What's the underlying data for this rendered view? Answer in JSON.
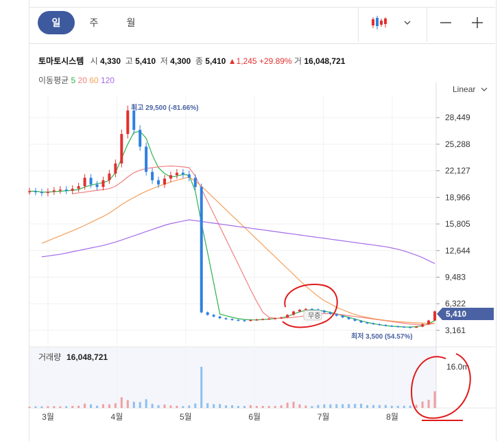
{
  "periods": [
    "일",
    "주",
    "월"
  ],
  "active_period": "일",
  "scale_label": "Linear",
  "stock": {
    "name": "토마토시스템",
    "open_label": "시",
    "open": "4,330",
    "high_label": "고",
    "high": "5,410",
    "low_label": "저",
    "low": "4,300",
    "close_label": "종",
    "close": "5,410",
    "change": "▲1,245",
    "change_pct": "+29.89%",
    "volume_label": "거",
    "volume": "16,048,721"
  },
  "moving_average": {
    "label": "이동평균",
    "periods": [
      {
        "value": "5",
        "color": "#2bb24c"
      },
      {
        "value": "20",
        "color": "#f08080"
      },
      {
        "value": "60",
        "color": "#f5a05a"
      },
      {
        "value": "120",
        "color": "#a46be8"
      }
    ]
  },
  "colors": {
    "up": "#e0312f",
    "down": "#2f7fe0",
    "active": "#3e5a9e",
    "price_tag": "#4a62a3"
  },
  "icons": {
    "candle": "candlestick-icon",
    "chevron": "chevron-down-icon",
    "zoom_out": "minus-icon",
    "zoom_in": "plus-icon"
  },
  "chart_data": {
    "type": "candlestick",
    "price_axis": {
      "ticks": [
        3161,
        6322,
        9483,
        12644,
        15805,
        18966,
        22127,
        25288,
        28449
      ],
      "tick_labels": [
        "3,161",
        "6,322",
        "9,483",
        "12,644",
        "15,805",
        "18,966",
        "22,127",
        "25,288",
        "28,449"
      ],
      "range": [
        1600,
        31000
      ]
    },
    "months": [
      "3월",
      "4월",
      "5월",
      "6월",
      "7월",
      "8월"
    ],
    "current_price": {
      "label": "5,410",
      "value": 5410
    },
    "high_annotation": {
      "text": "최고 29,500 (-81.66%)",
      "value": 29500
    },
    "low_annotation": {
      "text": "최저 3,500 (54.57%)",
      "value": 3500
    },
    "event_label": "무증",
    "volume_label": "거래량",
    "volume_value": "16,048,721",
    "volume_axis_label": "16.0m",
    "approx_close_series": [
      19700,
      19600,
      19500,
      19650,
      19800,
      19900,
      19750,
      20000,
      20300,
      21300,
      20500,
      20200,
      21000,
      21800,
      23000,
      26500,
      29300,
      27000,
      25000,
      22000,
      21000,
      20500,
      21200,
      21600,
      21900,
      21700,
      21300,
      20200,
      5300,
      5000,
      4800,
      4600,
      4500,
      4400,
      4350,
      4300,
      4400,
      4450,
      4500,
      4550,
      4600,
      4700,
      5000,
      5400,
      5600,
      5700,
      5650,
      5500,
      5300,
      5100,
      4900,
      4700,
      4500,
      4300,
      4100,
      4000,
      3900,
      3800,
      3700,
      3650,
      3600,
      3550,
      3500,
      3600,
      3900,
      4330,
      5410
    ],
    "ma_series": [
      {
        "name": "5",
        "values": [
          19700,
          19700,
          19600,
          19600,
          19650,
          19700,
          19750,
          19800,
          19900,
          20200,
          20400,
          20600,
          20700,
          21000,
          21900,
          23600,
          25300,
          26700,
          26800,
          26000,
          24000,
          22500,
          21800,
          21400,
          21500,
          21700,
          21600,
          19700,
          15900,
          12400,
          8800,
          5100,
          4900,
          4700,
          4550,
          4450,
          4400,
          4400,
          4440,
          4500,
          4560,
          4650,
          4800,
          5100,
          5350,
          5550,
          5600,
          5560,
          5450,
          5300,
          5100,
          4900,
          4700,
          4500,
          4300,
          4100,
          3960,
          3820,
          3720,
          3650,
          3600,
          3560,
          3550,
          3600,
          3700,
          3950,
          4320
        ]
      },
      {
        "name": "20",
        "values": [
          null,
          null,
          null,
          null,
          null,
          null,
          null,
          19400,
          19500,
          19600,
          19700,
          19800,
          19900,
          20000,
          20300,
          20800,
          21400,
          21900,
          22200,
          22400,
          22500,
          22600,
          22650,
          22700,
          22650,
          22600,
          22500,
          21500,
          20000,
          18500,
          17000,
          15500,
          14000,
          12500,
          11000,
          9500,
          8000,
          6600,
          5300,
          4700,
          4600,
          4600,
          4650,
          4700,
          4800,
          4900,
          5000,
          5100,
          5150,
          5150,
          5100,
          5000,
          4900,
          4800,
          4700,
          4600,
          4500,
          4400,
          4300,
          4200,
          4100,
          4000,
          3900,
          3850,
          3800,
          3850,
          4000
        ]
      },
      {
        "name": "60",
        "values": [
          null,
          null,
          13500,
          13800,
          14100,
          14400,
          14700,
          15000,
          15300,
          15650,
          16000,
          16350,
          16700,
          17100,
          17600,
          18100,
          18550,
          18950,
          19350,
          19700,
          20000,
          20300,
          20550,
          20800,
          21000,
          21200,
          21400,
          20900,
          20300,
          19600,
          18900,
          18200,
          17500,
          16800,
          16100,
          15400,
          14700,
          14000,
          13300,
          12600,
          11900,
          11200,
          10500,
          9800,
          9100,
          8400,
          7800,
          7200,
          6700,
          6300,
          5900,
          5600,
          5300,
          5050,
          4850,
          4700,
          4560,
          4450,
          4350,
          4270,
          4200,
          4140,
          4090,
          4050,
          4020,
          4000,
          4000
        ]
      },
      {
        "name": "120",
        "values": [
          null,
          null,
          11900,
          12000,
          12100,
          12200,
          12350,
          12500,
          12650,
          12800,
          12950,
          13100,
          13250,
          13450,
          13650,
          13900,
          14150,
          14400,
          14650,
          14900,
          15150,
          15400,
          15650,
          15850,
          16000,
          16150,
          16300,
          16200,
          16100,
          16000,
          15900,
          15800,
          15700,
          15600,
          15500,
          15400,
          15300,
          15200,
          15100,
          15000,
          14900,
          14800,
          14700,
          14600,
          14500,
          14400,
          14300,
          14200,
          14100,
          14000,
          13900,
          13800,
          13700,
          13600,
          13500,
          13400,
          13300,
          13200,
          13100,
          12950,
          12800,
          12600,
          12350,
          12100,
          11800,
          11450,
          11100
        ]
      }
    ]
  }
}
